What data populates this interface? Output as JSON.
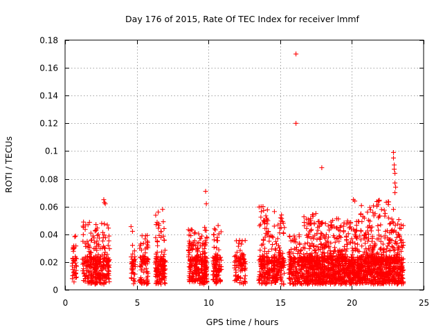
{
  "chart_data": {
    "type": "scatter",
    "title": "Day 176 of 2015, Rate Of TEC Index for receiver lmmf",
    "xlabel": "GPS time / hours",
    "ylabel": "ROTI / TECUs",
    "xlim": [
      0,
      25
    ],
    "ylim": [
      0,
      0.18
    ],
    "xticks": [
      0,
      5,
      10,
      15,
      20,
      25
    ],
    "xtick_labels": [
      "0",
      "5",
      "10",
      "15",
      "20",
      "25"
    ],
    "yticks": [
      0,
      0.02,
      0.04,
      0.06,
      0.08,
      0.1,
      0.12,
      0.14,
      0.16,
      0.18
    ],
    "ytick_labels": [
      "0",
      "0.02",
      "0.04",
      "0.06",
      "0.08",
      "0.1",
      "0.12",
      "0.14",
      "0.16",
      "0.18"
    ],
    "grid": true,
    "marker": "+",
    "series": [
      {
        "name": "ROTI",
        "color": "#ff0000",
        "clusters": [
          {
            "x_start": 0.5,
            "x_end": 0.8,
            "y_max": 0.039,
            "count": 40
          },
          {
            "x_start": 1.2,
            "x_end": 1.6,
            "y_max": 0.049,
            "count": 45
          },
          {
            "x_start": 1.6,
            "x_end": 2.2,
            "y_max": 0.05,
            "count": 110
          },
          {
            "x_start": 2.2,
            "x_end": 3.1,
            "y_max": 0.048,
            "count": 150
          },
          {
            "x_start": 4.6,
            "x_end": 4.9,
            "y_max": 0.05,
            "count": 40
          },
          {
            "x_start": 5.2,
            "x_end": 5.8,
            "y_max": 0.042,
            "count": 80
          },
          {
            "x_start": 6.3,
            "x_end": 7.0,
            "y_max": 0.059,
            "count": 140
          },
          {
            "x_start": 8.6,
            "x_end": 9.4,
            "y_max": 0.044,
            "count": 140
          },
          {
            "x_start": 9.4,
            "x_end": 9.9,
            "y_max": 0.045,
            "count": 110
          },
          {
            "x_start": 10.3,
            "x_end": 10.9,
            "y_max": 0.047,
            "count": 100
          },
          {
            "x_start": 11.8,
            "x_end": 12.6,
            "y_max": 0.038,
            "count": 90
          },
          {
            "x_start": 13.5,
            "x_end": 14.6,
            "y_max": 0.06,
            "count": 180
          },
          {
            "x_start": 14.6,
            "x_end": 15.3,
            "y_max": 0.054,
            "count": 130
          },
          {
            "x_start": 15.6,
            "x_end": 16.6,
            "y_max": 0.04,
            "count": 160
          },
          {
            "x_start": 16.6,
            "x_end": 17.6,
            "y_max": 0.056,
            "count": 240
          },
          {
            "x_start": 17.6,
            "x_end": 18.6,
            "y_max": 0.05,
            "count": 240
          },
          {
            "x_start": 18.6,
            "x_end": 19.6,
            "y_max": 0.052,
            "count": 230
          },
          {
            "x_start": 19.6,
            "x_end": 20.6,
            "y_max": 0.05,
            "count": 230
          },
          {
            "x_start": 20.6,
            "x_end": 21.6,
            "y_max": 0.062,
            "count": 240
          },
          {
            "x_start": 21.6,
            "x_end": 22.6,
            "y_max": 0.065,
            "count": 240
          },
          {
            "x_start": 22.6,
            "x_end": 23.6,
            "y_max": 0.052,
            "count": 230
          }
        ],
        "outliers": [
          {
            "x": 2.7,
            "y": 0.065
          },
          {
            "x": 2.75,
            "y": 0.063
          },
          {
            "x": 2.8,
            "y": 0.062
          },
          {
            "x": 6.8,
            "y": 0.058
          },
          {
            "x": 9.8,
            "y": 0.071
          },
          {
            "x": 9.85,
            "y": 0.062
          },
          {
            "x": 16.1,
            "y": 0.17
          },
          {
            "x": 16.1,
            "y": 0.12
          },
          {
            "x": 17.9,
            "y": 0.088
          },
          {
            "x": 20.1,
            "y": 0.065
          },
          {
            "x": 20.2,
            "y": 0.064
          },
          {
            "x": 22.9,
            "y": 0.099
          },
          {
            "x": 22.9,
            "y": 0.095
          },
          {
            "x": 22.95,
            "y": 0.09
          },
          {
            "x": 22.95,
            "y": 0.087
          },
          {
            "x": 23.0,
            "y": 0.084
          },
          {
            "x": 23.0,
            "y": 0.077
          },
          {
            "x": 23.05,
            "y": 0.074
          },
          {
            "x": 23.0,
            "y": 0.07
          },
          {
            "x": 22.9,
            "y": 0.058
          },
          {
            "x": 21.9,
            "y": 0.064
          },
          {
            "x": 13.8,
            "y": 0.06
          }
        ]
      }
    ]
  }
}
